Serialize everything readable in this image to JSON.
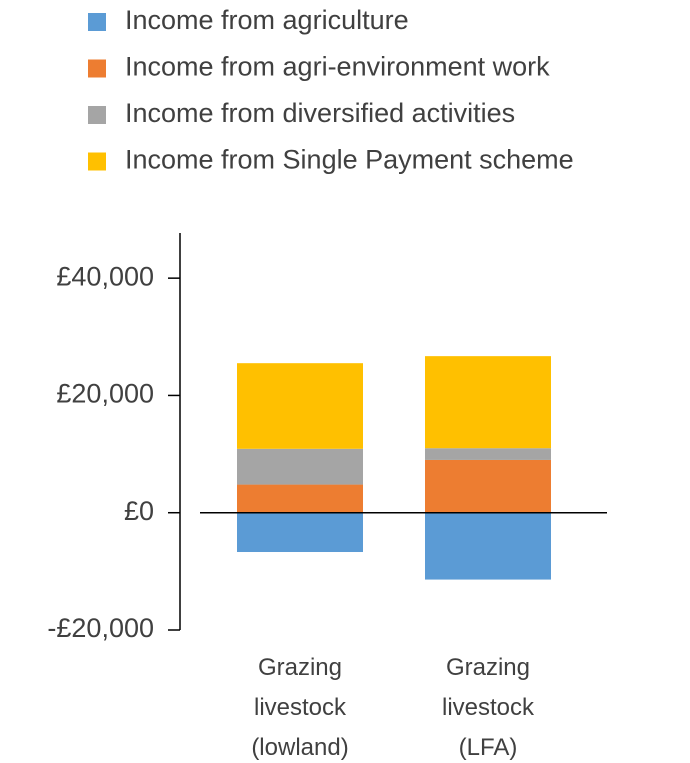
{
  "chart_data": {
    "type": "bar",
    "stacked": true,
    "categories": [
      "Grazing livestock (lowland)",
      "Grazing livestock (LFA)"
    ],
    "series": [
      {
        "name": "Income from agriculture",
        "color": "#5b9bd5",
        "values": [
          -6700,
          -11400
        ]
      },
      {
        "name": "Income from agri-environment work",
        "color": "#ed7d31",
        "values": [
          4800,
          9000
        ]
      },
      {
        "name": "Income from diversified activities",
        "color": "#a5a5a5",
        "values": [
          6100,
          2000
        ]
      },
      {
        "name": "Income from Single Payment scheme",
        "color": "#ffc000",
        "values": [
          14600,
          15700
        ]
      }
    ],
    "ylim": [
      -20000,
      47700
    ],
    "yticks": [
      {
        "value": -20000,
        "label": "-£20,000"
      },
      {
        "value": 0,
        "label": "£0"
      },
      {
        "value": 20000,
        "label": "£20,000"
      },
      {
        "value": 40000,
        "label": "£40,000"
      }
    ],
    "legend": "top"
  }
}
